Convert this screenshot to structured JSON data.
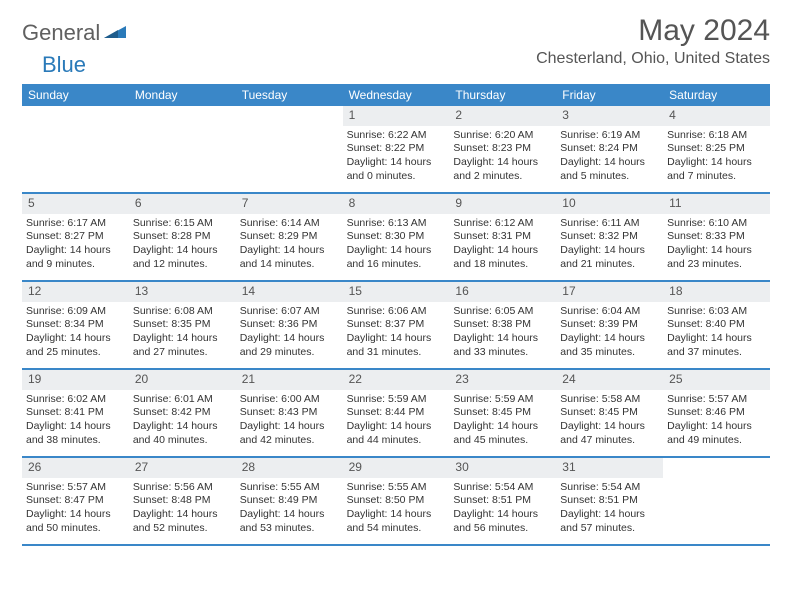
{
  "logo": {
    "general": "General",
    "blue": "Blue"
  },
  "title": "May 2024",
  "location": "Chesterland, Ohio, United States",
  "colors": {
    "header_bar": "#3a87c8",
    "daynum_bg": "#eceef0",
    "text": "#333333",
    "title_text": "#555555",
    "logo_blue": "#2a7ab9",
    "logo_gray": "#606060"
  },
  "weekdays": [
    "Sunday",
    "Monday",
    "Tuesday",
    "Wednesday",
    "Thursday",
    "Friday",
    "Saturday"
  ],
  "weeks": [
    [
      null,
      null,
      null,
      {
        "n": "1",
        "sr": "6:22 AM",
        "ss": "8:22 PM",
        "dl": "14 hours and 0 minutes."
      },
      {
        "n": "2",
        "sr": "6:20 AM",
        "ss": "8:23 PM",
        "dl": "14 hours and 2 minutes."
      },
      {
        "n": "3",
        "sr": "6:19 AM",
        "ss": "8:24 PM",
        "dl": "14 hours and 5 minutes."
      },
      {
        "n": "4",
        "sr": "6:18 AM",
        "ss": "8:25 PM",
        "dl": "14 hours and 7 minutes."
      }
    ],
    [
      {
        "n": "5",
        "sr": "6:17 AM",
        "ss": "8:27 PM",
        "dl": "14 hours and 9 minutes."
      },
      {
        "n": "6",
        "sr": "6:15 AM",
        "ss": "8:28 PM",
        "dl": "14 hours and 12 minutes."
      },
      {
        "n": "7",
        "sr": "6:14 AM",
        "ss": "8:29 PM",
        "dl": "14 hours and 14 minutes."
      },
      {
        "n": "8",
        "sr": "6:13 AM",
        "ss": "8:30 PM",
        "dl": "14 hours and 16 minutes."
      },
      {
        "n": "9",
        "sr": "6:12 AM",
        "ss": "8:31 PM",
        "dl": "14 hours and 18 minutes."
      },
      {
        "n": "10",
        "sr": "6:11 AM",
        "ss": "8:32 PM",
        "dl": "14 hours and 21 minutes."
      },
      {
        "n": "11",
        "sr": "6:10 AM",
        "ss": "8:33 PM",
        "dl": "14 hours and 23 minutes."
      }
    ],
    [
      {
        "n": "12",
        "sr": "6:09 AM",
        "ss": "8:34 PM",
        "dl": "14 hours and 25 minutes."
      },
      {
        "n": "13",
        "sr": "6:08 AM",
        "ss": "8:35 PM",
        "dl": "14 hours and 27 minutes."
      },
      {
        "n": "14",
        "sr": "6:07 AM",
        "ss": "8:36 PM",
        "dl": "14 hours and 29 minutes."
      },
      {
        "n": "15",
        "sr": "6:06 AM",
        "ss": "8:37 PM",
        "dl": "14 hours and 31 minutes."
      },
      {
        "n": "16",
        "sr": "6:05 AM",
        "ss": "8:38 PM",
        "dl": "14 hours and 33 minutes."
      },
      {
        "n": "17",
        "sr": "6:04 AM",
        "ss": "8:39 PM",
        "dl": "14 hours and 35 minutes."
      },
      {
        "n": "18",
        "sr": "6:03 AM",
        "ss": "8:40 PM",
        "dl": "14 hours and 37 minutes."
      }
    ],
    [
      {
        "n": "19",
        "sr": "6:02 AM",
        "ss": "8:41 PM",
        "dl": "14 hours and 38 minutes."
      },
      {
        "n": "20",
        "sr": "6:01 AM",
        "ss": "8:42 PM",
        "dl": "14 hours and 40 minutes."
      },
      {
        "n": "21",
        "sr": "6:00 AM",
        "ss": "8:43 PM",
        "dl": "14 hours and 42 minutes."
      },
      {
        "n": "22",
        "sr": "5:59 AM",
        "ss": "8:44 PM",
        "dl": "14 hours and 44 minutes."
      },
      {
        "n": "23",
        "sr": "5:59 AM",
        "ss": "8:45 PM",
        "dl": "14 hours and 45 minutes."
      },
      {
        "n": "24",
        "sr": "5:58 AM",
        "ss": "8:45 PM",
        "dl": "14 hours and 47 minutes."
      },
      {
        "n": "25",
        "sr": "5:57 AM",
        "ss": "8:46 PM",
        "dl": "14 hours and 49 minutes."
      }
    ],
    [
      {
        "n": "26",
        "sr": "5:57 AM",
        "ss": "8:47 PM",
        "dl": "14 hours and 50 minutes."
      },
      {
        "n": "27",
        "sr": "5:56 AM",
        "ss": "8:48 PM",
        "dl": "14 hours and 52 minutes."
      },
      {
        "n": "28",
        "sr": "5:55 AM",
        "ss": "8:49 PM",
        "dl": "14 hours and 53 minutes."
      },
      {
        "n": "29",
        "sr": "5:55 AM",
        "ss": "8:50 PM",
        "dl": "14 hours and 54 minutes."
      },
      {
        "n": "30",
        "sr": "5:54 AM",
        "ss": "8:51 PM",
        "dl": "14 hours and 56 minutes."
      },
      {
        "n": "31",
        "sr": "5:54 AM",
        "ss": "8:51 PM",
        "dl": "14 hours and 57 minutes."
      },
      null
    ]
  ],
  "labels": {
    "sunrise": "Sunrise: ",
    "sunset": "Sunset: ",
    "daylight": "Daylight: "
  }
}
